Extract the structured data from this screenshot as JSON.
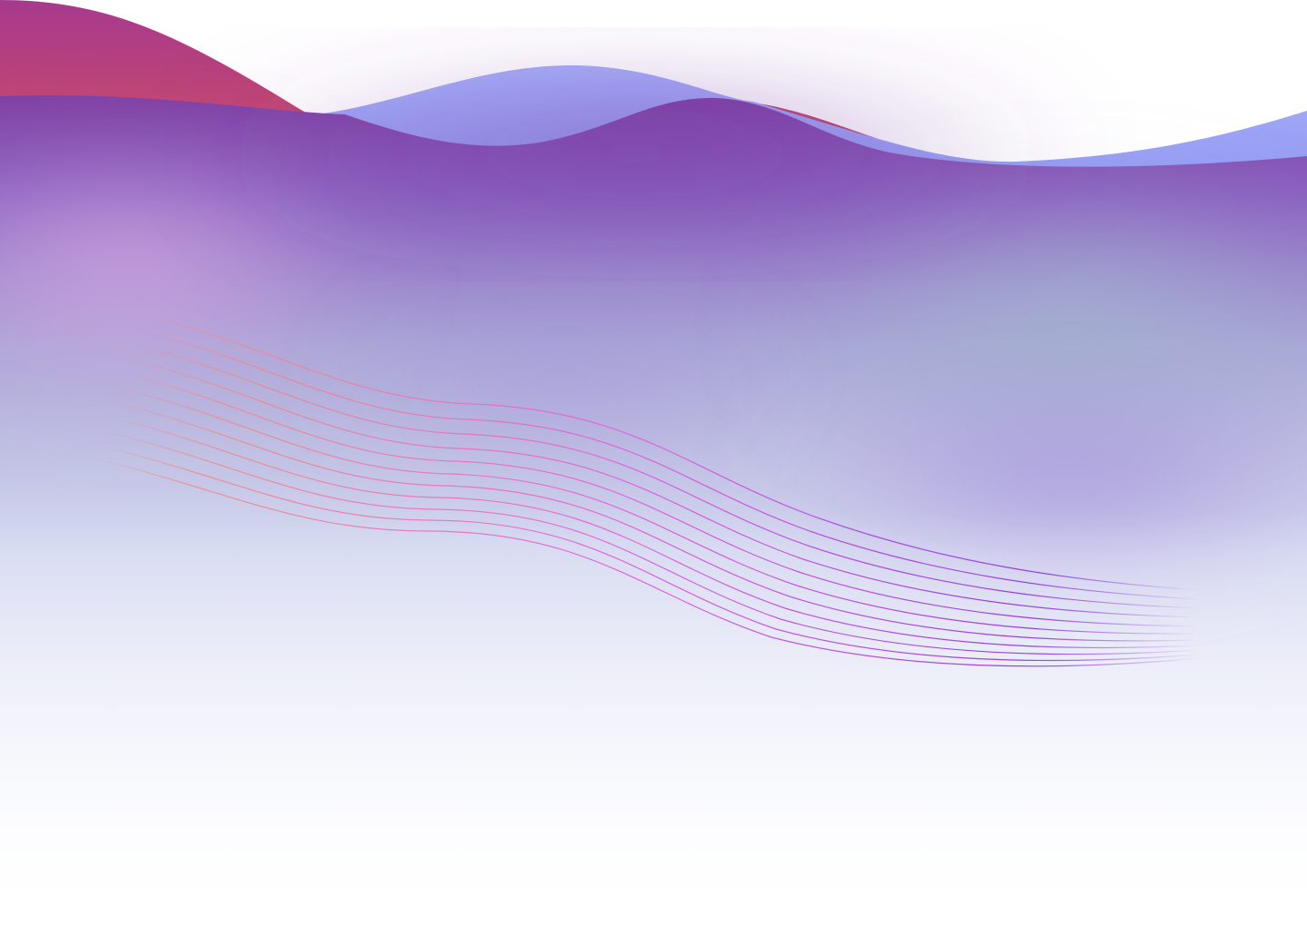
{
  "background": {
    "colors": {
      "red_wave_top": "#a63a8e",
      "red_wave_bottom": "#e0524e",
      "blue_wave_top": "#a7aefa",
      "blue_wave_bottom": "#8b92ef",
      "purple_body": "#7e3fa3",
      "pink_glow": "#d3a9e0",
      "steel_blue_glow": "#a3b2d0",
      "lavender_glow": "#a68fdb",
      "mist": "#dde1f3",
      "base": "#ffffff",
      "line_start": "#f08a8a",
      "line_mid": "#e85bd6",
      "line_end": "#8a2be2"
    }
  }
}
